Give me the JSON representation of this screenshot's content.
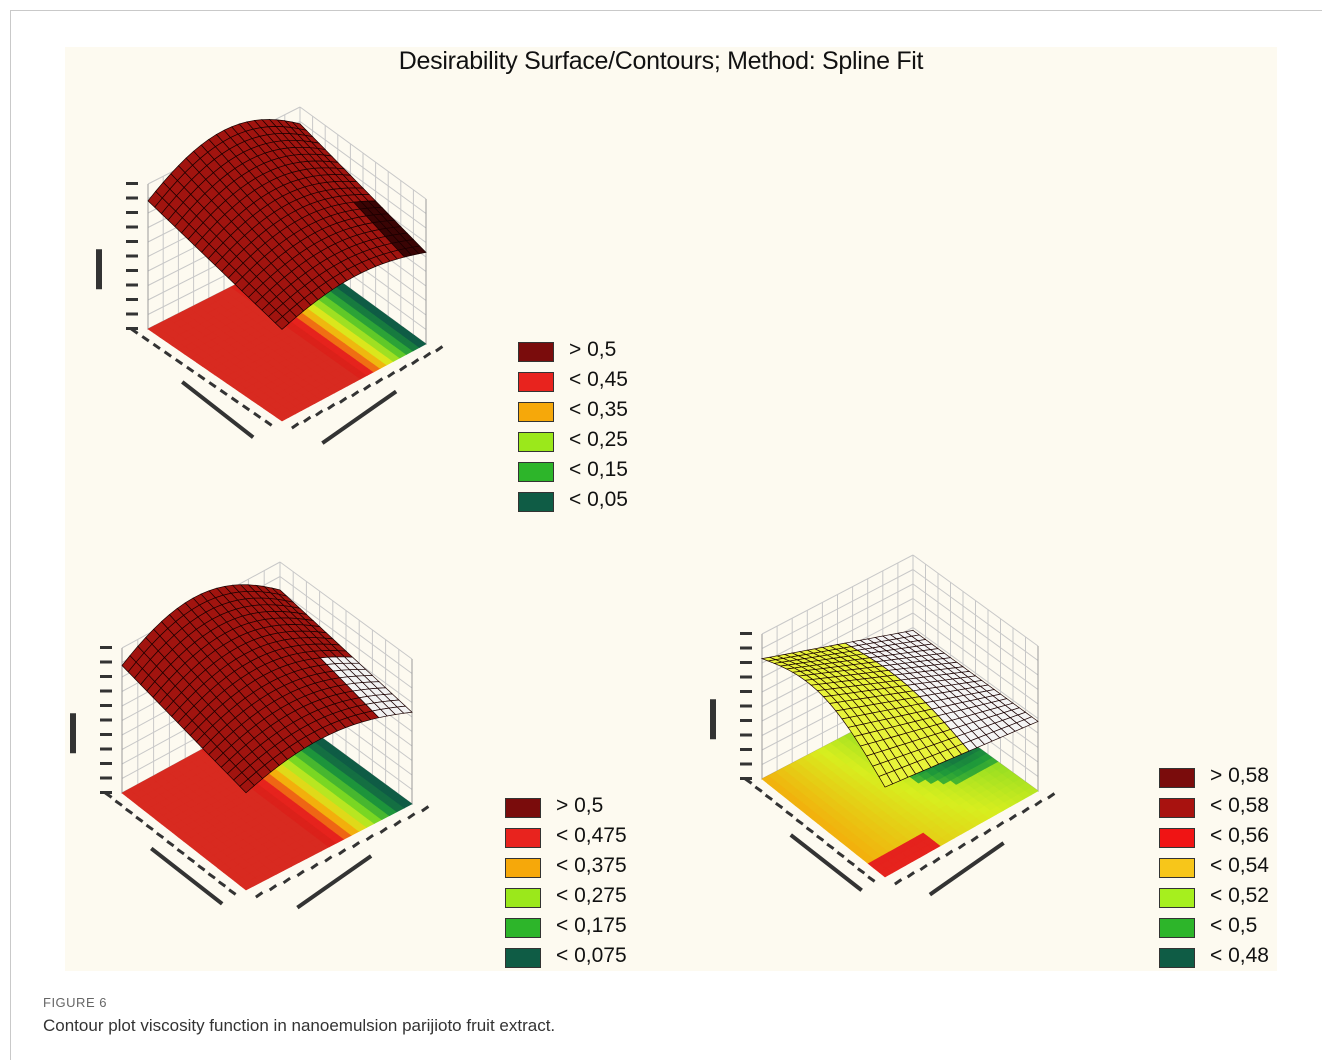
{
  "chart_data": [
    {
      "type": "surface",
      "panel": "top-left",
      "title": "Desirability Surface/Contours; Method: Spline Fit",
      "legend": [
        {
          "label": "> 0,5",
          "color": "#7a0c0c"
        },
        {
          "label": "< 0,45",
          "color": "#e8231e"
        },
        {
          "label": "< 0,35",
          "color": "#f6a80a"
        },
        {
          "label": "< 0,25",
          "color": "#9be81b"
        },
        {
          "label": "< 0,15",
          "color": "#2db52a"
        },
        {
          "label": "< 0,05",
          "color": "#0f5c45"
        }
      ]
    },
    {
      "type": "surface",
      "panel": "bottom-left",
      "legend": [
        {
          "label": "> 0,5",
          "color": "#7a0c0c"
        },
        {
          "label": "< 0,475",
          "color": "#e8231e"
        },
        {
          "label": "< 0,375",
          "color": "#f6a80a"
        },
        {
          "label": "< 0,275",
          "color": "#9be81b"
        },
        {
          "label": "< 0,175",
          "color": "#2db52a"
        },
        {
          "label": "< 0,075",
          "color": "#0f5c45"
        }
      ]
    },
    {
      "type": "surface",
      "panel": "bottom-right",
      "legend": [
        {
          "label": "> 0,58",
          "color": "#7a0c0c"
        },
        {
          "label": "< 0,58",
          "color": "#a8120f"
        },
        {
          "label": "< 0,56",
          "color": "#f01414"
        },
        {
          "label": "< 0,54",
          "color": "#f7c61a"
        },
        {
          "label": "< 0,52",
          "color": "#a6ef1e"
        },
        {
          "label": "< 0,5",
          "color": "#2db52a"
        },
        {
          "label": "< 0,48",
          "color": "#0f5c45"
        }
      ]
    }
  ],
  "caption": {
    "label": "FIGURE 6",
    "text": "Contour plot viscosity function in nanoemulsion parijioto fruit extract."
  }
}
